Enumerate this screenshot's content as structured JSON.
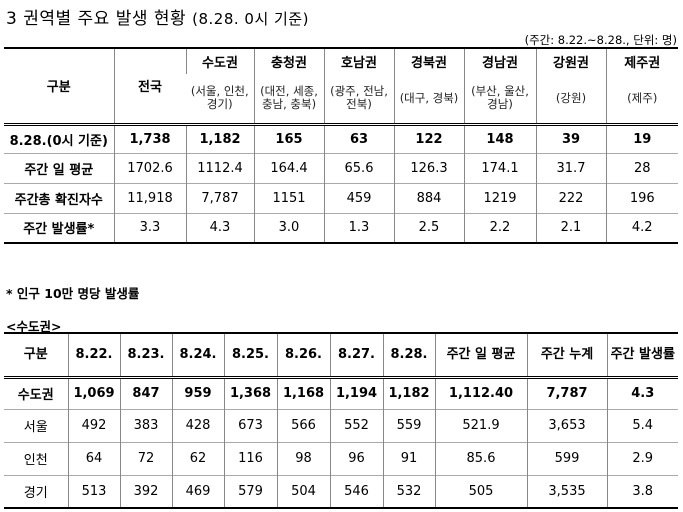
{
  "title": {
    "main": "3 권역별 주요 발생 현황",
    "sub": "(8.28. 0시 기준)"
  },
  "unit_note": "(주간: 8.22.~8.28., 단위: 명)",
  "table1": {
    "corner_label": "구분",
    "national_label": "전국",
    "regions": [
      {
        "name": "수도권",
        "sub": "(서울, 인천, 경기)"
      },
      {
        "name": "충청권",
        "sub": "(대전, 세종, 충남, 충북)"
      },
      {
        "name": "호남권",
        "sub": "(광주, 전남, 전북)"
      },
      {
        "name": "경북권",
        "sub": "(대구, 경북)"
      },
      {
        "name": "경남권",
        "sub": "(부산, 울산, 경남)"
      },
      {
        "name": "강원권",
        "sub": "(강원)"
      },
      {
        "name": "제주권",
        "sub": "(제주)"
      }
    ],
    "rows": [
      {
        "label": "8.28.(0시 기준)",
        "values": [
          "1,738",
          "1,182",
          "165",
          "63",
          "122",
          "148",
          "39",
          "19"
        ]
      },
      {
        "label": "주간 일 평균",
        "values": [
          "1702.6",
          "1112.4",
          "164.4",
          "65.6",
          "126.3",
          "174.1",
          "31.7",
          "28"
        ]
      },
      {
        "label": "주간총 확진자수",
        "values": [
          "11,918",
          "7,787",
          "1151",
          "459",
          "884",
          "1219",
          "222",
          "196"
        ]
      },
      {
        "label": "주간 발생률*",
        "values": [
          "3.3",
          "4.3",
          "3.0",
          "1.3",
          "2.5",
          "2.2",
          "2.1",
          "4.2"
        ]
      }
    ]
  },
  "footnote": "* 인구 10만 명당 발생률",
  "section_label": "<수도권>",
  "table2": {
    "headers": [
      "구분",
      "8.22.",
      "8.23.",
      "8.24.",
      "8.25.",
      "8.26.",
      "8.27.",
      "8.28.",
      "주간 일 평균",
      "주간 누계",
      "주간 발생률"
    ],
    "rows": [
      {
        "label": "수도권",
        "values": [
          "1,069",
          "847",
          "959",
          "1,368",
          "1,168",
          "1,194",
          "1,182",
          "1,112.40",
          "7,787",
          "4.3"
        ]
      },
      {
        "label": "서울",
        "values": [
          "492",
          "383",
          "428",
          "673",
          "566",
          "552",
          "559",
          "521.9",
          "3,653",
          "5.4"
        ]
      },
      {
        "label": "인천",
        "values": [
          "64",
          "72",
          "62",
          "116",
          "98",
          "96",
          "91",
          "85.6",
          "599",
          "2.9"
        ]
      },
      {
        "label": "경기",
        "values": [
          "513",
          "392",
          "469",
          "579",
          "504",
          "546",
          "532",
          "505",
          "3,535",
          "3.8"
        ]
      }
    ]
  }
}
